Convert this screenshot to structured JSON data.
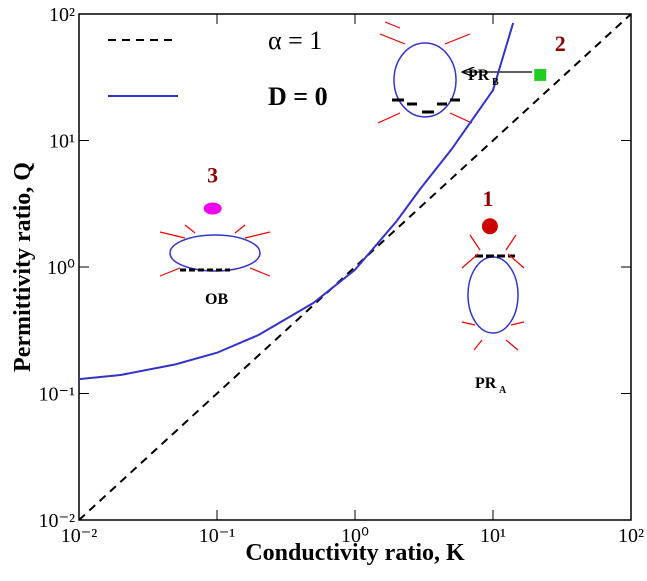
{
  "chart_data": {
    "type": "line",
    "x_label": "Conductivity ratio, K",
    "y_label": "Permittivity ratio, Q",
    "log_x": true,
    "log_y": true,
    "xlim": [
      0.01,
      100
    ],
    "ylim": [
      0.01,
      100
    ],
    "xticks": [
      {
        "value": 0.01,
        "label": "10⁻²"
      },
      {
        "value": 0.1,
        "label": "10⁻¹"
      },
      {
        "value": 1,
        "label": "10⁰"
      },
      {
        "value": 10,
        "label": "10¹"
      },
      {
        "value": 100,
        "label": "10²"
      }
    ],
    "yticks": [
      {
        "value": 0.01,
        "label": "10⁻²"
      },
      {
        "value": 0.1,
        "label": "10⁻¹"
      },
      {
        "value": 1,
        "label": "10⁰"
      },
      {
        "value": 10,
        "label": "10¹"
      },
      {
        "value": 100,
        "label": "10²"
      }
    ],
    "series": [
      {
        "name": "α = 1",
        "color": "#000000",
        "dash": true,
        "x": [
          0.01,
          100
        ],
        "values": [
          0.01,
          100
        ]
      },
      {
        "name": "D = 0",
        "color": "#3333cc",
        "dash": false,
        "x": [
          0.01,
          0.02,
          0.05,
          0.1,
          0.2,
          0.5,
          1,
          2,
          3,
          5,
          10,
          14
        ],
        "values": [
          0.13,
          0.14,
          0.17,
          0.21,
          0.29,
          0.52,
          0.95,
          2.3,
          4.2,
          8.5,
          25,
          85
        ]
      }
    ],
    "points": [
      {
        "label": "1",
        "x": 9.5,
        "y": 2.1,
        "color": "#cc0000",
        "shape": "circle"
      },
      {
        "label": "2",
        "x": 22,
        "y": 33,
        "color": "#22cc22",
        "shape": "square"
      },
      {
        "label": "3",
        "x": 0.093,
        "y": 2.9,
        "color": "#ee00ee",
        "shape": "ellipse"
      }
    ],
    "annotations": [
      {
        "text": "PR",
        "sub": "B"
      },
      {
        "text": "PR",
        "sub": "A"
      },
      {
        "text": "OB"
      }
    ]
  }
}
